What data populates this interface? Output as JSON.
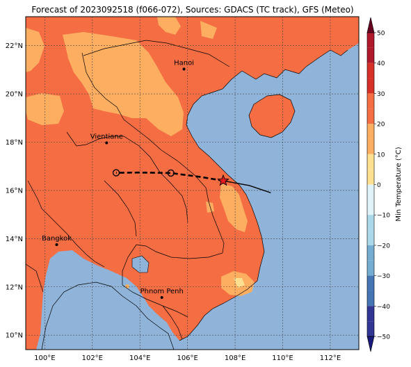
{
  "title": "Forecast of 2023092518 (f066-072), Sources: GDACS (TC track), GFS (Meteo)",
  "map": {
    "lon_range": [
      99.2,
      113.2
    ],
    "lat_range": [
      9.4,
      23.2
    ],
    "lon_ticks": [
      {
        "value": 100,
        "label": "100°E"
      },
      {
        "value": 102,
        "label": "102°E"
      },
      {
        "value": 104,
        "label": "104°E"
      },
      {
        "value": 106,
        "label": "106°E"
      },
      {
        "value": 108,
        "label": "108°E"
      },
      {
        "value": 110,
        "label": "110°E"
      },
      {
        "value": 112,
        "label": "112°E"
      }
    ],
    "lat_ticks": [
      {
        "value": 10,
        "label": "10°N"
      },
      {
        "value": 12,
        "label": "12°N"
      },
      {
        "value": 14,
        "label": "14°N"
      },
      {
        "value": 16,
        "label": "16°N"
      },
      {
        "value": 18,
        "label": "18°N"
      },
      {
        "value": 20,
        "label": "20°N"
      },
      {
        "value": 22,
        "label": "22°N"
      }
    ],
    "gridlines": true,
    "colors": {
      "ocean": "#8fb3d9",
      "land_20_30": "#f46d43",
      "land_10_20": "#fdae61",
      "land_0_10": "#fee090",
      "track_past": "#000000",
      "storm_marker": "#e41a1c"
    },
    "cities": [
      {
        "name": "Hanoi",
        "lon": 105.85,
        "lat": 21.03
      },
      {
        "name": "Vientiane",
        "lon": 102.6,
        "lat": 17.97
      },
      {
        "name": "Bangkok",
        "lon": 100.5,
        "lat": 13.75
      },
      {
        "name": "Phnom Penh",
        "lon": 104.92,
        "lat": 11.56
      }
    ],
    "track_past": [
      [
        109.5,
        15.9
      ],
      [
        108.6,
        16.2
      ],
      [
        107.5,
        16.4
      ]
    ],
    "track_forecast": [
      [
        107.5,
        16.4
      ],
      [
        106.6,
        16.55
      ],
      [
        105.3,
        16.72
      ],
      [
        104.0,
        16.74
      ],
      [
        103.0,
        16.73
      ]
    ],
    "forecast_points": [
      [
        105.3,
        16.72
      ],
      [
        103.0,
        16.73
      ]
    ],
    "storm_position": [
      107.5,
      16.4
    ]
  },
  "colorbar": {
    "label": "Min Temperature (°C)",
    "ticks": [
      50,
      40,
      30,
      20,
      10,
      0,
      -10,
      -20,
      -30,
      -40,
      -50
    ],
    "colors": [
      "#67001f",
      "#b2182b",
      "#d73027",
      "#f46d43",
      "#fdae61",
      "#fee090",
      "#e0f3f8",
      "#abd9e9",
      "#74add1",
      "#4575b4",
      "#313695",
      "#1a1a7a"
    ]
  }
}
